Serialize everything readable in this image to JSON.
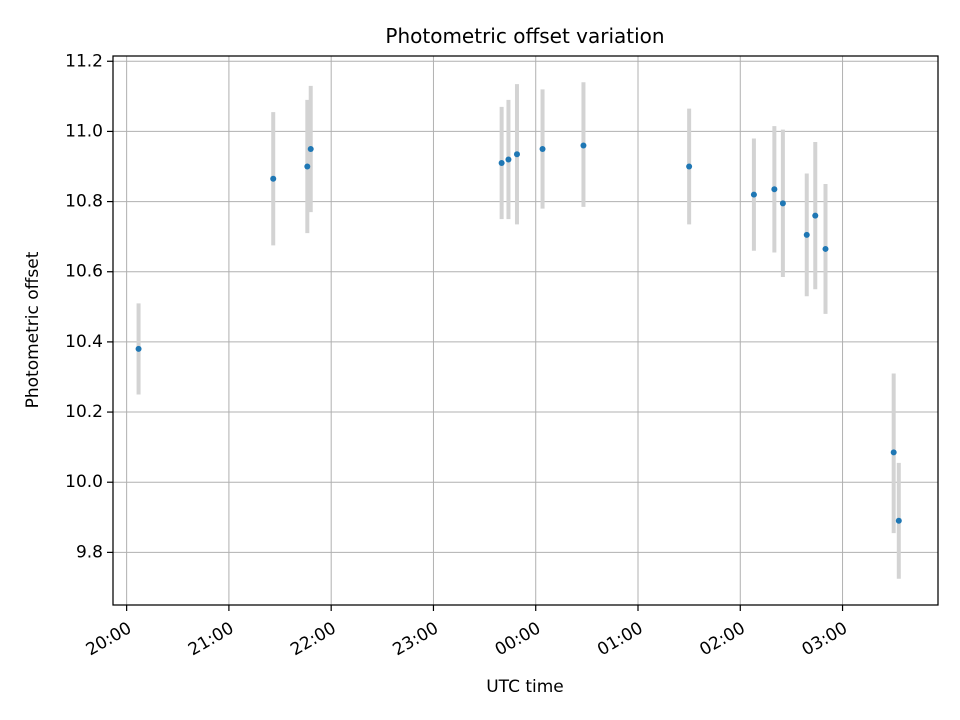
{
  "chart_data": {
    "type": "scatter",
    "title": "Photometric offset variation",
    "xlabel": "UTC time",
    "ylabel": "Photometric offset",
    "x_tick_labels": [
      "20:00",
      "21:00",
      "22:00",
      "23:00",
      "00:00",
      "01:00",
      "02:00",
      "03:00"
    ],
    "y_tick_labels": [
      "9.8",
      "10.0",
      "10.2",
      "10.4",
      "10.6",
      "10.8",
      "11.0",
      "11.2"
    ],
    "y_ticks": [
      9.8,
      10.0,
      10.2,
      10.4,
      10.6,
      10.8,
      11.0,
      11.2
    ],
    "xlim": [
      "19:52",
      "03:56"
    ],
    "ylim": [
      9.65,
      11.215
    ],
    "grid": true,
    "marker_color": "#1f77b4",
    "errorbar_color": "#d3d3d3",
    "points": [
      {
        "x": "20:07",
        "y": 10.38,
        "err_low": 10.25,
        "err_high": 10.51
      },
      {
        "x": "21:26",
        "y": 10.865,
        "err_low": 10.675,
        "err_high": 11.055
      },
      {
        "x": "21:46",
        "y": 10.9,
        "err_low": 10.71,
        "err_high": 11.09
      },
      {
        "x": "21:48",
        "y": 10.95,
        "err_low": 10.77,
        "err_high": 11.13
      },
      {
        "x": "23:40",
        "y": 10.91,
        "err_low": 10.75,
        "err_high": 11.07
      },
      {
        "x": "23:44",
        "y": 10.92,
        "err_low": 10.75,
        "err_high": 11.09
      },
      {
        "x": "23:49",
        "y": 10.935,
        "err_low": 10.735,
        "err_high": 11.135
      },
      {
        "x": "00:04",
        "y": 10.95,
        "err_low": 10.78,
        "err_high": 11.12
      },
      {
        "x": "00:28",
        "y": 10.96,
        "err_low": 10.785,
        "err_high": 11.14
      },
      {
        "x": "01:30",
        "y": 10.9,
        "err_low": 10.735,
        "err_high": 11.065
      },
      {
        "x": "02:08",
        "y": 10.82,
        "err_low": 10.66,
        "err_high": 10.98
      },
      {
        "x": "02:20",
        "y": 10.835,
        "err_low": 10.655,
        "err_high": 11.015
      },
      {
        "x": "02:25",
        "y": 10.795,
        "err_low": 10.585,
        "err_high": 11.005
      },
      {
        "x": "02:39",
        "y": 10.705,
        "err_low": 10.53,
        "err_high": 10.88
      },
      {
        "x": "02:44",
        "y": 10.76,
        "err_low": 10.55,
        "err_high": 10.97
      },
      {
        "x": "02:50",
        "y": 10.665,
        "err_low": 10.48,
        "err_high": 10.85
      },
      {
        "x": "03:30",
        "y": 10.085,
        "err_low": 9.855,
        "err_high": 10.31
      },
      {
        "x": "03:33",
        "y": 9.89,
        "err_low": 9.725,
        "err_high": 10.055
      }
    ]
  }
}
